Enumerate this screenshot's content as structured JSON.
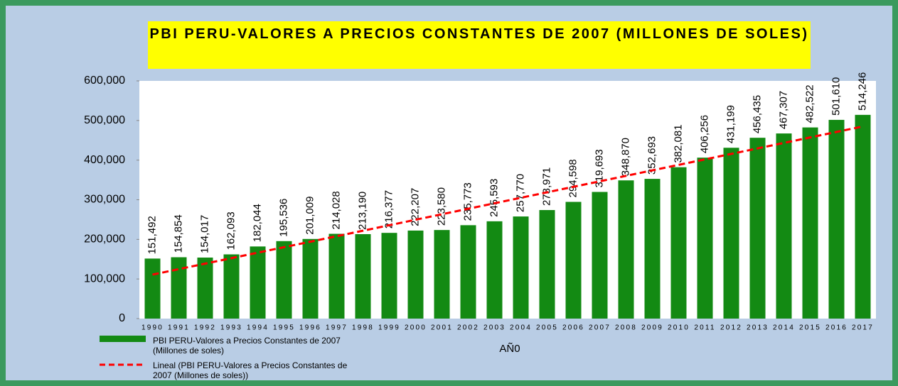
{
  "chart_data": {
    "type": "bar",
    "title": "PBI PERU-VALORES A PRECIOS CONSTANTES DE 2007 (MILLONES DE SOLES)",
    "x_label": "AÑ0",
    "categories": [
      "1990",
      "1991",
      "1992",
      "1993",
      "1994",
      "1995",
      "1996",
      "1997",
      "1998",
      "1999",
      "2000",
      "2001",
      "2002",
      "2003",
      "2004",
      "2005",
      "2006",
      "2007",
      "2008",
      "2009",
      "2010",
      "2011",
      "2012",
      "2013",
      "2014",
      "2015",
      "2016",
      "2017"
    ],
    "series": [
      {
        "name": "PBI PERU-Valores a Precios Constantes de 2007 (Millones de soles)",
        "color": "#138a13",
        "values": [
          151492,
          154854,
          154017,
          162093,
          182044,
          195536,
          201009,
          214028,
          213190,
          216377,
          222207,
          223580,
          235773,
          245593,
          257770,
          273971,
          294598,
          319693,
          348870,
          352693,
          382081,
          406256,
          431199,
          456435,
          467307,
          482522,
          501610,
          514246
        ],
        "value_labels": [
          "151,492",
          "154,854",
          "154,017",
          "162,093",
          "182,044",
          "195,536",
          "201,009",
          "214,028",
          "213,190",
          "216,377",
          "222,207",
          "223,580",
          "235,773",
          "245,593",
          "257,770",
          "273,971",
          "294,598",
          "319,693",
          "348,870",
          "352,693",
          "382,081",
          "406,256",
          "431,199",
          "456,435",
          "467,307",
          "482,522",
          "501,610",
          "514,246"
        ]
      }
    ],
    "trendline": {
      "name": "Lineal (PBI PERU-Valores a Precios Constantes de 2007 (Millones de soles))",
      "color": "#ff0000",
      "categories": [
        "1990",
        "2017"
      ],
      "values": [
        111000,
        485000
      ]
    },
    "ylim": [
      0,
      600000
    ],
    "yticks": [
      0,
      {
        "value": 100000,
        "label": "100,000"
      },
      {
        "value": 200000,
        "label": "200,000"
      },
      {
        "value": 300000,
        "label": "300,000"
      },
      {
        "value": 400000,
        "label": "400,000"
      },
      {
        "value": 500000,
        "label": "500,000"
      },
      {
        "value": 600000,
        "label": "600,000"
      }
    ]
  }
}
